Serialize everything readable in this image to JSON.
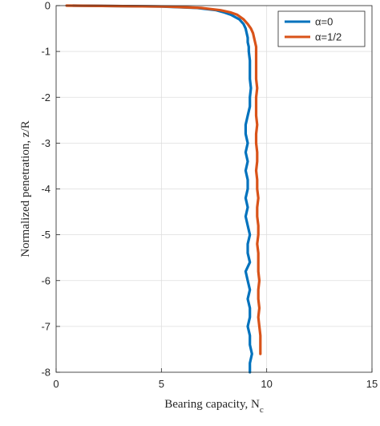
{
  "chart_data": {
    "type": "line",
    "title": "",
    "xlabel": "Bearing capacity, N",
    "xlabel_sub": "c",
    "ylabel": "Normalized penetration, z/R",
    "xlim": [
      0,
      15
    ],
    "ylim": [
      -8,
      0
    ],
    "x_ticks": [
      0,
      5,
      10,
      15
    ],
    "y_ticks": [
      0,
      -1,
      -2,
      -3,
      -4,
      -5,
      -6,
      -7,
      -8
    ],
    "grid": true,
    "legend_position": "top-right",
    "series": [
      {
        "name": "α=0",
        "color": "#0072BD",
        "z": [
          0,
          -0.02,
          -0.05,
          -0.1,
          -0.15,
          -0.2,
          -0.3,
          -0.4,
          -0.5,
          -0.6,
          -0.7,
          -0.8,
          -0.9,
          -1.0,
          -1.2,
          -1.4,
          -1.6,
          -1.8,
          -2.0,
          -2.2,
          -2.4,
          -2.6,
          -2.8,
          -3.0,
          -3.2,
          -3.4,
          -3.6,
          -3.8,
          -4.0,
          -4.2,
          -4.4,
          -4.6,
          -4.8,
          -5.0,
          -5.2,
          -5.4,
          -5.6,
          -5.8,
          -6.0,
          -6.2,
          -6.4,
          -6.6,
          -6.8,
          -7.0,
          -7.2,
          -7.4,
          -7.6,
          -7.8,
          -8.0
        ],
        "nc": [
          0.8,
          5.0,
          6.7,
          7.6,
          8.0,
          8.3,
          8.7,
          8.9,
          9.0,
          9.05,
          9.1,
          9.1,
          9.15,
          9.15,
          9.2,
          9.2,
          9.2,
          9.25,
          9.2,
          9.2,
          9.1,
          9.0,
          9.0,
          9.1,
          9.0,
          9.1,
          9.0,
          9.1,
          9.1,
          9.0,
          9.1,
          9.0,
          9.1,
          9.2,
          9.1,
          9.1,
          9.2,
          9.0,
          9.1,
          9.2,
          9.1,
          9.2,
          9.2,
          9.1,
          9.2,
          9.2,
          9.3,
          9.2,
          9.2
        ]
      },
      {
        "name": "α=1/2",
        "color": "#D95319",
        "z": [
          0,
          -0.02,
          -0.05,
          -0.1,
          -0.15,
          -0.2,
          -0.3,
          -0.4,
          -0.5,
          -0.6,
          -0.7,
          -0.8,
          -0.9,
          -1.0,
          -1.2,
          -1.4,
          -1.6,
          -1.8,
          -2.0,
          -2.2,
          -2.4,
          -2.6,
          -2.8,
          -3.0,
          -3.2,
          -3.4,
          -3.6,
          -3.8,
          -4.0,
          -4.2,
          -4.4,
          -4.6,
          -4.8,
          -5.0,
          -5.2,
          -5.4,
          -5.6,
          -5.8,
          -6.0,
          -6.2,
          -6.4,
          -6.6,
          -6.8,
          -7.0,
          -7.2,
          -7.4,
          -7.6
        ],
        "nc": [
          0.5,
          5.2,
          6.9,
          7.8,
          8.3,
          8.6,
          8.9,
          9.1,
          9.25,
          9.35,
          9.4,
          9.45,
          9.5,
          9.5,
          9.5,
          9.5,
          9.5,
          9.55,
          9.5,
          9.5,
          9.5,
          9.55,
          9.5,
          9.5,
          9.55,
          9.55,
          9.5,
          9.55,
          9.55,
          9.6,
          9.55,
          9.55,
          9.6,
          9.6,
          9.55,
          9.6,
          9.6,
          9.6,
          9.65,
          9.6,
          9.6,
          9.65,
          9.6,
          9.65,
          9.7,
          9.7,
          9.7
        ]
      }
    ]
  }
}
